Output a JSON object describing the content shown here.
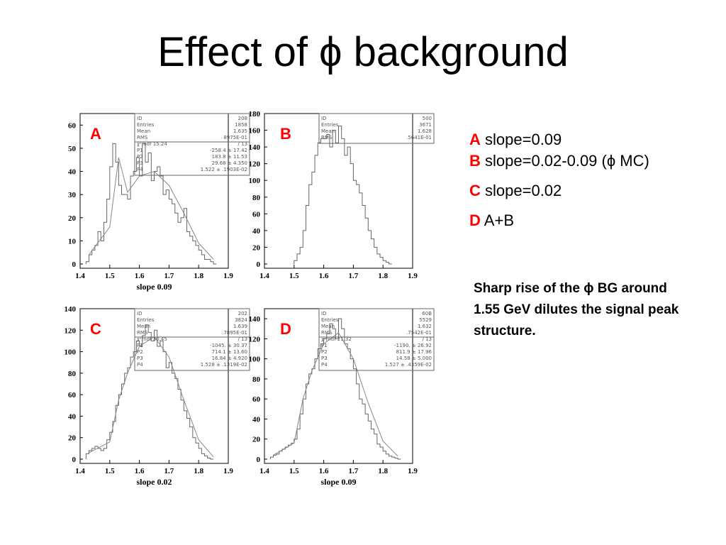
{
  "slide": {
    "title": "Effect of ϕ background",
    "legend": [
      {
        "key": "A",
        "text": "slope=0.09"
      },
      {
        "key": "B",
        "text": "slope=0.02-0.09 (ϕ MC)"
      },
      {
        "key": "C",
        "text": "slope=0.02"
      },
      {
        "key": "D",
        "text": "A+B"
      }
    ],
    "note": "Sharp rise of the ϕ BG around 1.55 GeV dilutes the signal peak structure."
  },
  "chart_data": [
    {
      "panel": "A",
      "type": "histogram",
      "xlabel": "slope 0.09",
      "xlim": [
        1.4,
        1.9
      ],
      "ylim": [
        0,
        65
      ],
      "xticks": [
        "1.4",
        "1.5",
        "1.6",
        "1.7",
        "1.8",
        "1.9"
      ],
      "yticks": [
        "0",
        "10",
        "20",
        "30",
        "40",
        "50",
        "60"
      ],
      "stats": [
        [
          "ID",
          "208"
        ],
        [
          "Entries",
          "1858"
        ],
        [
          "Mean",
          "1.635"
        ],
        [
          "RMS",
          "8975E-01"
        ],
        [
          "χ²/ndf 15.24",
          "/ 13"
        ],
        [
          "P1",
          "-258.4 ± 17.42"
        ],
        [
          "P2",
          "183.8 ± 11.53"
        ],
        [
          "P3",
          "29.68 ± 4.350"
        ],
        [
          "P4",
          "1.522 ± .1903E-02"
        ]
      ],
      "bins_x": [
        1.425,
        1.435,
        1.445,
        1.455,
        1.465,
        1.475,
        1.485,
        1.495,
        1.505,
        1.515,
        1.525,
        1.535,
        1.545,
        1.555,
        1.565,
        1.575,
        1.585,
        1.595,
        1.605,
        1.615,
        1.625,
        1.635,
        1.645,
        1.655,
        1.665,
        1.675,
        1.685,
        1.695,
        1.705,
        1.715,
        1.725,
        1.735,
        1.745,
        1.755,
        1.765,
        1.775,
        1.785,
        1.795,
        1.805,
        1.815,
        1.825,
        1.835,
        1.845,
        1.855
      ],
      "values": [
        1,
        4,
        6,
        8,
        14,
        10,
        18,
        28,
        42,
        52,
        44,
        34,
        30,
        30,
        28,
        38,
        40,
        46,
        38,
        52,
        44,
        48,
        36,
        40,
        42,
        38,
        30,
        32,
        28,
        26,
        22,
        18,
        20,
        24,
        14,
        12,
        10,
        8,
        6,
        4,
        2,
        2,
        1,
        0
      ],
      "fit": [
        [
          1.43,
          4
        ],
        [
          1.5,
          16
        ],
        [
          1.53,
          46
        ],
        [
          1.56,
          31
        ],
        [
          1.6,
          38
        ],
        [
          1.65,
          40
        ],
        [
          1.7,
          34
        ],
        [
          1.75,
          22
        ],
        [
          1.8,
          9
        ],
        [
          1.85,
          2
        ]
      ]
    },
    {
      "panel": "B",
      "type": "histogram",
      "xlabel": "",
      "xlim": [
        1.4,
        1.9
      ],
      "ylim": [
        0,
        180
      ],
      "xticks": [
        "1.4",
        "1.5",
        "1.6",
        "1.7",
        "1.8",
        "1.9"
      ],
      "yticks": [
        "0",
        "20",
        "40",
        "60",
        "80",
        "100",
        "120",
        "140",
        "160",
        "180"
      ],
      "stats": [
        [
          "ID",
          "500"
        ],
        [
          "Entries",
          "3671"
        ],
        [
          "Mean",
          "1.628"
        ],
        [
          "RMS",
          ".5641E-01"
        ]
      ],
      "bins_x": [
        1.505,
        1.515,
        1.525,
        1.535,
        1.545,
        1.555,
        1.565,
        1.575,
        1.585,
        1.595,
        1.605,
        1.615,
        1.625,
        1.635,
        1.645,
        1.655,
        1.665,
        1.675,
        1.685,
        1.695,
        1.705,
        1.715,
        1.725,
        1.735,
        1.745,
        1.755,
        1.765,
        1.775,
        1.785,
        1.795,
        1.805,
        1.815,
        1.825
      ],
      "values": [
        4,
        12,
        20,
        40,
        70,
        95,
        110,
        130,
        145,
        150,
        150,
        155,
        140,
        160,
        145,
        165,
        150,
        130,
        140,
        120,
        100,
        95,
        85,
        70,
        55,
        40,
        30,
        20,
        12,
        8,
        4,
        2,
        0
      ],
      "fit": []
    },
    {
      "panel": "C",
      "type": "histogram",
      "xlabel": "slope 0.02",
      "xlim": [
        1.4,
        1.9
      ],
      "ylim": [
        0,
        140
      ],
      "xticks": [
        "1.4",
        "1.5",
        "1.6",
        "1.7",
        "1.8",
        "1.9"
      ],
      "yticks": [
        "0",
        "20",
        "40",
        "60",
        "80",
        "100",
        "120",
        "140"
      ],
      "stats": [
        [
          "ID",
          "202"
        ],
        [
          "Entries",
          "3824"
        ],
        [
          "Mean",
          "1.639"
        ],
        [
          "RMS",
          ".7895E-01"
        ],
        [
          "χ²/ndf 30.45",
          "/ 13"
        ],
        [
          "P1",
          "-1045. ± 30.37"
        ],
        [
          "P2",
          "714.1 ± 13.60"
        ],
        [
          "P3",
          "16.84 ± 4.920"
        ],
        [
          "P4",
          "1.528 ± .1319E-02"
        ]
      ],
      "bins_x": [
        1.425,
        1.435,
        1.445,
        1.455,
        1.465,
        1.475,
        1.485,
        1.495,
        1.505,
        1.515,
        1.525,
        1.535,
        1.545,
        1.555,
        1.565,
        1.575,
        1.585,
        1.595,
        1.605,
        1.615,
        1.625,
        1.635,
        1.645,
        1.655,
        1.665,
        1.675,
        1.685,
        1.695,
        1.705,
        1.715,
        1.725,
        1.735,
        1.745,
        1.755,
        1.765,
        1.775,
        1.785,
        1.795,
        1.805,
        1.815,
        1.825,
        1.835,
        1.845
      ],
      "values": [
        5,
        8,
        10,
        12,
        10,
        8,
        10,
        18,
        25,
        35,
        50,
        60,
        70,
        80,
        85,
        95,
        100,
        110,
        105,
        115,
        125,
        118,
        110,
        120,
        105,
        110,
        100,
        85,
        90,
        80,
        75,
        65,
        55,
        45,
        38,
        30,
        20,
        15,
        10,
        5,
        3,
        1,
        0
      ],
      "fit": [
        [
          1.43,
          6
        ],
        [
          1.5,
          16
        ],
        [
          1.53,
          55
        ],
        [
          1.56,
          80
        ],
        [
          1.6,
          105
        ],
        [
          1.65,
          114
        ],
        [
          1.7,
          95
        ],
        [
          1.75,
          55
        ],
        [
          1.8,
          18
        ],
        [
          1.85,
          2
        ]
      ]
    },
    {
      "panel": "D",
      "type": "histogram",
      "xlabel": "slope 0.09",
      "xlim": [
        1.4,
        1.9
      ],
      "ylim": [
        0,
        150
      ],
      "xticks": [
        "1.4",
        "1.5",
        "1.6",
        "1.7",
        "1.8",
        "1.9"
      ],
      "yticks": [
        "0",
        "20",
        "40",
        "60",
        "80",
        "100",
        "120",
        "140"
      ],
      "stats": [
        [
          "ID",
          "60B"
        ],
        [
          "Entries",
          "5529"
        ],
        [
          "Mean",
          "1.632"
        ],
        [
          "RMS",
          ".7542E-01"
        ],
        [
          "χ²/ndf 21.32",
          "/ 13"
        ],
        [
          "P1",
          "-1190. ± 26.92"
        ],
        [
          "P2",
          "811.9 ± 17.96"
        ],
        [
          "P3",
          "14.58 ± 5.000"
        ],
        [
          "P4",
          "1.527 ± .4359E-02"
        ]
      ],
      "bins_x": [
        1.425,
        1.435,
        1.445,
        1.455,
        1.465,
        1.475,
        1.485,
        1.495,
        1.505,
        1.515,
        1.525,
        1.535,
        1.545,
        1.555,
        1.565,
        1.575,
        1.585,
        1.595,
        1.605,
        1.615,
        1.625,
        1.635,
        1.645,
        1.655,
        1.665,
        1.675,
        1.685,
        1.695,
        1.705,
        1.715,
        1.725,
        1.735,
        1.745,
        1.755,
        1.765,
        1.775,
        1.785,
        1.795,
        1.805,
        1.815,
        1.825,
        1.835,
        1.845,
        1.855
      ],
      "values": [
        2,
        4,
        5,
        8,
        10,
        12,
        14,
        16,
        20,
        30,
        45,
        60,
        75,
        85,
        90,
        100,
        110,
        115,
        120,
        125,
        135,
        130,
        120,
        140,
        130,
        115,
        110,
        100,
        90,
        75,
        60,
        55,
        45,
        38,
        30,
        25,
        15,
        12,
        8,
        5,
        3,
        2,
        1,
        0
      ],
      "fit": [
        [
          1.43,
          4
        ],
        [
          1.5,
          16
        ],
        [
          1.53,
          60
        ],
        [
          1.56,
          88
        ],
        [
          1.6,
          115
        ],
        [
          1.65,
          126
        ],
        [
          1.7,
          100
        ],
        [
          1.75,
          56
        ],
        [
          1.8,
          18
        ],
        [
          1.85,
          3
        ]
      ]
    }
  ]
}
